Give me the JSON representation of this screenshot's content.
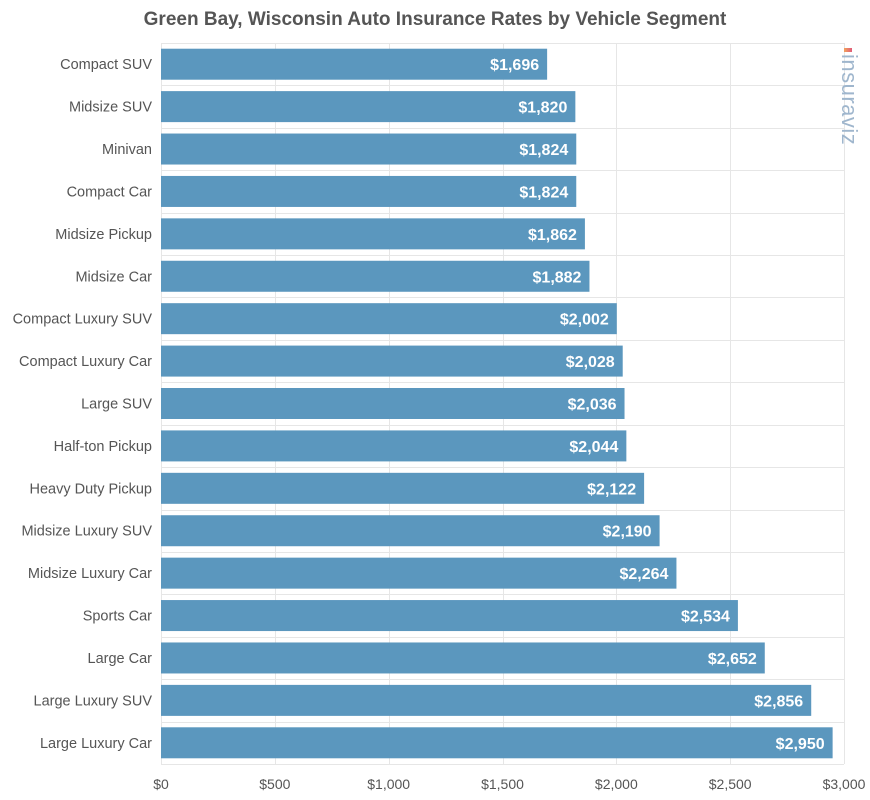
{
  "title": "Green Bay, Wisconsin Auto Insurance Rates by Vehicle Segment",
  "watermark": "insuraviz",
  "colors": {
    "bar": "#5b97be",
    "grid": "#e6e6e6",
    "axis_text": "#555555",
    "label_text": "#ffffff"
  },
  "chart_data": {
    "type": "bar",
    "orientation": "horizontal",
    "title": "Green Bay, Wisconsin Auto Insurance Rates by Vehicle Segment",
    "xlabel": "",
    "ylabel": "",
    "xlim": [
      0,
      3000
    ],
    "grid": true,
    "legend": "none",
    "categories": [
      "Compact SUV",
      "Midsize SUV",
      "Minivan",
      "Compact Car",
      "Midsize Pickup",
      "Midsize Car",
      "Compact Luxury SUV",
      "Compact Luxury Car",
      "Large SUV",
      "Half-ton Pickup",
      "Heavy Duty Pickup",
      "Midsize Luxury SUV",
      "Midsize Luxury Car",
      "Sports Car",
      "Large Car",
      "Large Luxury SUV",
      "Large Luxury Car"
    ],
    "values": [
      1696,
      1820,
      1824,
      1824,
      1862,
      1882,
      2002,
      2028,
      2036,
      2044,
      2122,
      2190,
      2264,
      2534,
      2652,
      2856,
      2950
    ],
    "value_labels": [
      "$1,696",
      "$1,820",
      "$1,824",
      "$1,824",
      "$1,862",
      "$1,882",
      "$2,002",
      "$2,028",
      "$2,036",
      "$2,044",
      "$2,122",
      "$2,190",
      "$2,264",
      "$2,534",
      "$2,652",
      "$2,856",
      "$2,950"
    ],
    "x_ticks": [
      0,
      500,
      1000,
      1500,
      2000,
      2500,
      3000
    ],
    "x_tick_labels": [
      "$0",
      "$500",
      "$1,000",
      "$1,500",
      "$2,000",
      "$2,500",
      "$3,000"
    ]
  }
}
